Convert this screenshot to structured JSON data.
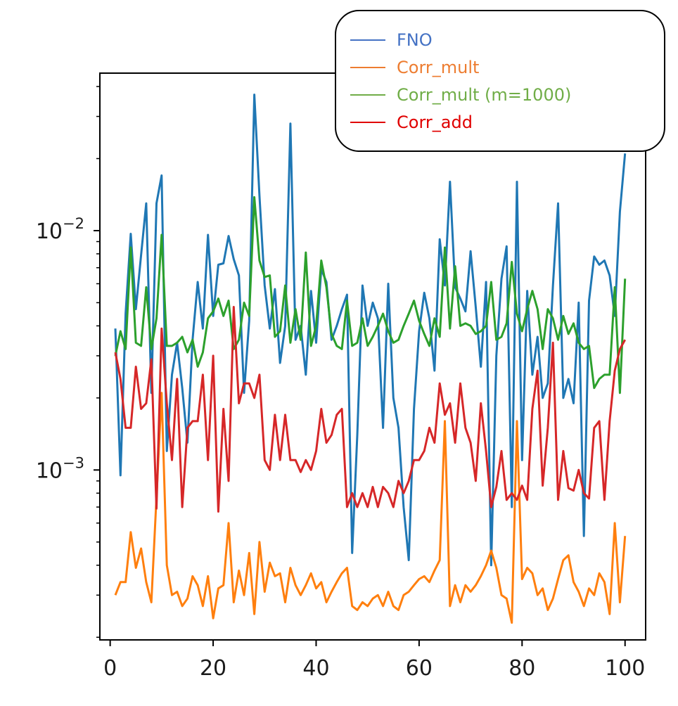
{
  "chart_data": {
    "type": "line",
    "title": "",
    "xlabel": "",
    "ylabel": "",
    "yscale": "log",
    "xlim": [
      -2,
      104
    ],
    "ylim": [
      0.000195,
      0.0455
    ],
    "xticks": [
      0,
      20,
      40,
      60,
      80,
      100
    ],
    "xtick_labels": [
      "0",
      "20",
      "40",
      "60",
      "80",
      "100"
    ],
    "yticks": [
      0.001,
      0.01
    ],
    "ytick_labels": [
      {
        "base": "10",
        "exp": "−3"
      },
      {
        "base": "10",
        "exp": "−2"
      }
    ],
    "legend_position": "top-right",
    "x": [
      1,
      2,
      3,
      4,
      5,
      6,
      7,
      8,
      9,
      10,
      11,
      12,
      13,
      14,
      15,
      16,
      17,
      18,
      19,
      20,
      21,
      22,
      23,
      24,
      25,
      26,
      27,
      28,
      29,
      30,
      31,
      32,
      33,
      34,
      35,
      36,
      37,
      38,
      39,
      40,
      41,
      42,
      43,
      44,
      45,
      46,
      47,
      48,
      49,
      50,
      51,
      52,
      53,
      54,
      55,
      56,
      57,
      58,
      59,
      60,
      61,
      62,
      63,
      64,
      65,
      66,
      67,
      68,
      69,
      70,
      71,
      72,
      73,
      74,
      75,
      76,
      77,
      78,
      79,
      80,
      81,
      82,
      83,
      84,
      85,
      86,
      87,
      88,
      89,
      90,
      91,
      92,
      93,
      94,
      95,
      96,
      97,
      98,
      99,
      100
    ],
    "series": [
      {
        "name": "FNO",
        "color": "#1f77b4",
        "legend_color": "#4472c4",
        "values": [
          0.0039,
          0.00095,
          0.0045,
          0.0097,
          0.0047,
          0.0079,
          0.013,
          0.0021,
          0.013,
          0.017,
          0.0012,
          0.0025,
          0.0034,
          0.0022,
          0.0013,
          0.0035,
          0.0061,
          0.0039,
          0.0096,
          0.0044,
          0.0072,
          0.0073,
          0.0095,
          0.0076,
          0.0065,
          0.0021,
          0.0042,
          0.037,
          0.014,
          0.0059,
          0.0039,
          0.0057,
          0.0028,
          0.004,
          0.028,
          0.0035,
          0.004,
          0.0025,
          0.0056,
          0.0034,
          0.0069,
          0.0061,
          0.0035,
          0.004,
          0.0047,
          0.0054,
          0.00045,
          0.0014,
          0.0059,
          0.004,
          0.005,
          0.0043,
          0.0015,
          0.006,
          0.002,
          0.0015,
          0.0007,
          0.00042,
          0.0018,
          0.0038,
          0.0055,
          0.0043,
          0.0026,
          0.0092,
          0.0059,
          0.016,
          0.0058,
          0.0052,
          0.0046,
          0.0082,
          0.0048,
          0.0027,
          0.0061,
          0.0004,
          0.003,
          0.0063,
          0.0086,
          0.0007,
          0.016,
          0.0011,
          0.0056,
          0.0025,
          0.0036,
          0.002,
          0.0023,
          0.0059,
          0.013,
          0.002,
          0.0024,
          0.0019,
          0.005,
          0.00053,
          0.0051,
          0.0078,
          0.0072,
          0.0075,
          0.0065,
          0.0044,
          0.012,
          0.021
        ]
      },
      {
        "name": "Corr_mult",
        "color": "#ff7f0e",
        "legend_color": "#ed7d31",
        "values": [
          0.0003,
          0.00034,
          0.00034,
          0.00055,
          0.00039,
          0.00047,
          0.00034,
          0.00028,
          0.00077,
          0.0021,
          0.0004,
          0.0003,
          0.00031,
          0.00027,
          0.00029,
          0.00036,
          0.00033,
          0.00027,
          0.00036,
          0.00024,
          0.00032,
          0.00033,
          0.0006,
          0.00028,
          0.00038,
          0.0003,
          0.00045,
          0.00025,
          0.0005,
          0.00031,
          0.00041,
          0.00036,
          0.00037,
          0.00028,
          0.00039,
          0.00033,
          0.0003,
          0.00033,
          0.00037,
          0.00032,
          0.00034,
          0.00028,
          0.00031,
          0.00034,
          0.00037,
          0.00039,
          0.00027,
          0.00026,
          0.00028,
          0.00027,
          0.00029,
          0.0003,
          0.00027,
          0.00031,
          0.00027,
          0.00026,
          0.0003,
          0.00031,
          0.00033,
          0.00035,
          0.00036,
          0.00034,
          0.00038,
          0.00042,
          0.0016,
          0.00027,
          0.00033,
          0.00028,
          0.00033,
          0.00031,
          0.00033,
          0.00036,
          0.0004,
          0.00046,
          0.00039,
          0.0003,
          0.00029,
          0.00023,
          0.0016,
          0.00035,
          0.00039,
          0.00037,
          0.0003,
          0.00032,
          0.00026,
          0.00029,
          0.00035,
          0.00042,
          0.00044,
          0.00034,
          0.00031,
          0.00027,
          0.00032,
          0.0003,
          0.00037,
          0.00034,
          0.00025,
          0.0006,
          0.00028,
          0.00053
        ]
      },
      {
        "name": "Corr_mult (m=1000)",
        "color": "#2ca02c",
        "legend_color": "#70ad47",
        "values": [
          0.003,
          0.0038,
          0.0032,
          0.0085,
          0.0034,
          0.0033,
          0.0058,
          0.0032,
          0.0043,
          0.0096,
          0.0033,
          0.0033,
          0.0034,
          0.0036,
          0.0031,
          0.0035,
          0.0027,
          0.0031,
          0.0043,
          0.0046,
          0.0052,
          0.0044,
          0.0051,
          0.0032,
          0.0035,
          0.005,
          0.0044,
          0.0138,
          0.0075,
          0.0064,
          0.0065,
          0.0036,
          0.0038,
          0.0059,
          0.0034,
          0.0047,
          0.0035,
          0.0081,
          0.0033,
          0.004,
          0.0075,
          0.0058,
          0.0037,
          0.0033,
          0.0032,
          0.0051,
          0.0033,
          0.0034,
          0.0043,
          0.0033,
          0.0036,
          0.004,
          0.0045,
          0.0038,
          0.0034,
          0.0035,
          0.004,
          0.0045,
          0.0051,
          0.0042,
          0.0037,
          0.0033,
          0.0043,
          0.0036,
          0.0085,
          0.0039,
          0.0071,
          0.004,
          0.0041,
          0.004,
          0.0037,
          0.0038,
          0.004,
          0.0061,
          0.0035,
          0.0036,
          0.0041,
          0.0074,
          0.0045,
          0.0038,
          0.0047,
          0.0056,
          0.0047,
          0.0032,
          0.0047,
          0.0043,
          0.0035,
          0.0044,
          0.0037,
          0.0041,
          0.0034,
          0.0032,
          0.0033,
          0.0022,
          0.0024,
          0.0025,
          0.0025,
          0.0058,
          0.0021,
          0.0063
        ]
      },
      {
        "name": "Corr_add",
        "color": "#d62728",
        "legend_color": "#e00000",
        "values": [
          0.0031,
          0.0024,
          0.0015,
          0.0015,
          0.0027,
          0.0018,
          0.0019,
          0.0029,
          0.00069,
          0.0039,
          0.0019,
          0.0011,
          0.0024,
          0.0007,
          0.0015,
          0.0016,
          0.0016,
          0.0025,
          0.0011,
          0.003,
          0.00067,
          0.0018,
          0.0009,
          0.0048,
          0.0019,
          0.0023,
          0.0023,
          0.002,
          0.0025,
          0.0011,
          0.001,
          0.0017,
          0.0011,
          0.0017,
          0.0011,
          0.0011,
          0.00098,
          0.0011,
          0.001,
          0.0012,
          0.0018,
          0.0013,
          0.0014,
          0.0017,
          0.0018,
          0.0007,
          0.0008,
          0.0007,
          0.0008,
          0.0007,
          0.00085,
          0.0007,
          0.00085,
          0.0008,
          0.0007,
          0.0009,
          0.0008,
          0.0009,
          0.0011,
          0.0011,
          0.0012,
          0.0015,
          0.0013,
          0.0023,
          0.0017,
          0.0019,
          0.0013,
          0.0023,
          0.0015,
          0.0013,
          0.0009,
          0.0019,
          0.0012,
          0.0007,
          0.00085,
          0.0012,
          0.00075,
          0.0008,
          0.00075,
          0.00086,
          0.00075,
          0.0018,
          0.0026,
          0.00086,
          0.0015,
          0.0034,
          0.00075,
          0.0012,
          0.00084,
          0.00082,
          0.001,
          0.0008,
          0.00076,
          0.0015,
          0.0016,
          0.00075,
          0.0016,
          0.0026,
          0.0032,
          0.0035
        ]
      }
    ]
  }
}
